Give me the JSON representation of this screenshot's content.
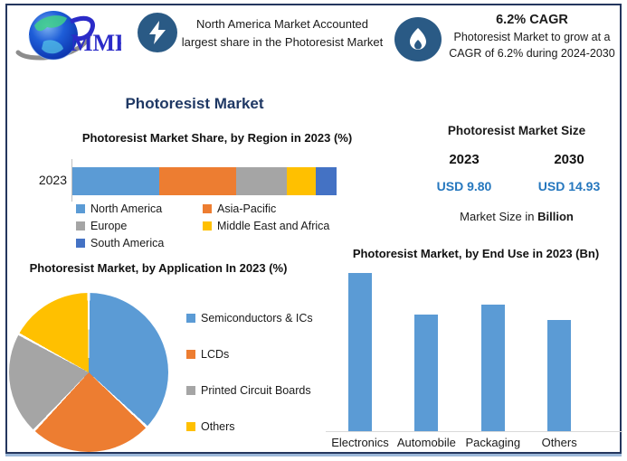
{
  "colors": {
    "frame_navy": "#24365E",
    "title_navy": "#1F3864",
    "icon_circle_blue": "#2A5A85",
    "usd_value_blue": "#2577BE",
    "series_blue": "#5B9BD5",
    "series_orange": "#ED7D31",
    "series_gray": "#A5A5A5",
    "series_yellow": "#FFC000",
    "series_dark_blue": "#4472C4"
  },
  "header": {
    "logo_text": "MMR",
    "highlight": {
      "icon": "lightning-icon",
      "text": "North America Market Accounted largest share in the Photoresist Market"
    },
    "cagr": {
      "icon": "flame-icon",
      "title": "6.2% CAGR",
      "text": "Photoresist Market to grow at a CAGR of 6.2% during 2024-2030"
    }
  },
  "page_title": "Photoresist Market",
  "market_size": {
    "title": "Photoresist Market Size",
    "year_left": "2023",
    "year_right": "2030",
    "value_left": "USD 9.80",
    "value_right": "USD 14.93",
    "note_prefix": "Market Size in ",
    "note_bold": "Billion"
  },
  "chart_data": [
    {
      "type": "bar",
      "variant": "horizontal-stacked",
      "title": "Photoresist Market Share, by Region in 2023 (%)",
      "categories": [
        "2023"
      ],
      "series": [
        {
          "name": "North America",
          "color": "#5B9BD5",
          "values": [
            33
          ]
        },
        {
          "name": "Asia-Pacific",
          "color": "#ED7D31",
          "values": [
            29
          ]
        },
        {
          "name": "Europe",
          "color": "#A5A5A5",
          "values": [
            19
          ]
        },
        {
          "name": "Middle East and Africa",
          "color": "#FFC000",
          "values": [
            11
          ]
        },
        {
          "name": "South America",
          "color": "#4472C4",
          "values": [
            8
          ]
        }
      ],
      "xlim": [
        0,
        100
      ],
      "legend_position": "bottom",
      "values_estimated_from_pixels": true
    },
    {
      "type": "pie",
      "title": "Photoresist Market, by Application In 2023 (%)",
      "labels": [
        "Semiconductors & ICs",
        "LCDs",
        "Printed Circuit Boards",
        "Others"
      ],
      "values": [
        37,
        25,
        21,
        17
      ],
      "colors": [
        "#5B9BD5",
        "#ED7D31",
        "#A5A5A5",
        "#FFC000"
      ],
      "start_angle_deg": 0,
      "direction": "clockwise",
      "legend_position": "right",
      "values_estimated_from_pixels": true
    },
    {
      "type": "bar",
      "title": "Photoresist Market, by End Use in 2023 (Bn)",
      "categories": [
        "Electronics",
        "Automobile",
        "Packaging",
        "Others"
      ],
      "values": [
        3.0,
        2.2,
        2.4,
        2.1
      ],
      "bar_color": "#5B9BD5",
      "ylim": [
        0,
        3.2
      ],
      "grid": false,
      "values_estimated_from_pixels": true
    }
  ]
}
